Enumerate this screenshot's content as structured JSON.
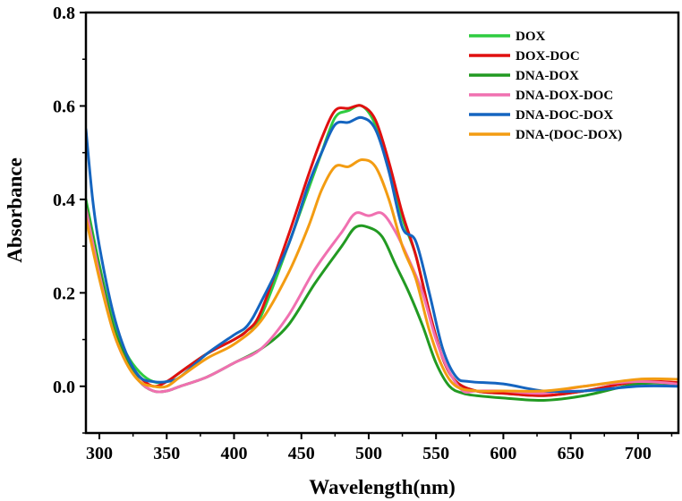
{
  "chart_data": {
    "type": "line",
    "title": "",
    "xlabel": "Wavelength(nm)",
    "ylabel": "Absorbance",
    "xlim": [
      290,
      730
    ],
    "ylim": [
      -0.1,
      0.8
    ],
    "xticks": [
      300,
      350,
      400,
      450,
      500,
      550,
      600,
      650,
      700
    ],
    "yticks": [
      0.0,
      0.2,
      0.4,
      0.6,
      0.8
    ],
    "xtick_labels": [
      "300",
      "350",
      "400",
      "450",
      "500",
      "550",
      "600",
      "650",
      "700"
    ],
    "ytick_labels": [
      "0.0",
      "0.2",
      "0.4",
      "0.6",
      "0.8"
    ],
    "grid": false,
    "legend_position": "top-right",
    "series": [
      {
        "name": "DOX",
        "color": "#2ecc40",
        "x": [
          290,
          300,
          310,
          320,
          330,
          340,
          350,
          360,
          380,
          400,
          410,
          420,
          440,
          455,
          465,
          475,
          485,
          495,
          505,
          515,
          525,
          535,
          545,
          555,
          565,
          580,
          600,
          630,
          660,
          700,
          730
        ],
        "y": [
          0.4,
          0.26,
          0.14,
          0.07,
          0.03,
          0.01,
          0.01,
          0.03,
          0.07,
          0.1,
          0.12,
          0.15,
          0.3,
          0.42,
          0.5,
          0.575,
          0.59,
          0.6,
          0.56,
          0.47,
          0.36,
          0.28,
          0.16,
          0.06,
          0.01,
          -0.01,
          -0.015,
          -0.02,
          -0.01,
          0.01,
          0.005
        ]
      },
      {
        "name": "DOX-DOC",
        "color": "#e01010",
        "x": [
          290,
          300,
          310,
          320,
          330,
          340,
          350,
          360,
          380,
          400,
          410,
          420,
          440,
          455,
          465,
          475,
          485,
          495,
          505,
          515,
          525,
          535,
          545,
          555,
          565,
          580,
          600,
          630,
          660,
          700,
          730
        ],
        "y": [
          0.38,
          0.25,
          0.13,
          0.06,
          0.02,
          0.0,
          0.01,
          0.03,
          0.07,
          0.1,
          0.12,
          0.16,
          0.32,
          0.45,
          0.53,
          0.59,
          0.595,
          0.6,
          0.57,
          0.48,
          0.37,
          0.28,
          0.16,
          0.06,
          0.01,
          -0.01,
          -0.015,
          -0.02,
          -0.01,
          0.01,
          0.008
        ]
      },
      {
        "name": "DNA-DOX",
        "color": "#229a22",
        "x": [
          290,
          300,
          310,
          320,
          330,
          340,
          350,
          360,
          380,
          400,
          420,
          440,
          460,
          480,
          490,
          500,
          510,
          520,
          530,
          540,
          550,
          560,
          570,
          580,
          600,
          630,
          660,
          700,
          730
        ],
        "y": [
          0.39,
          0.25,
          0.13,
          0.06,
          0.01,
          -0.01,
          -0.01,
          0.0,
          0.02,
          0.05,
          0.08,
          0.13,
          0.22,
          0.3,
          0.34,
          0.34,
          0.32,
          0.26,
          0.2,
          0.13,
          0.05,
          0.0,
          -0.015,
          -0.02,
          -0.025,
          -0.03,
          -0.02,
          0.005,
          0.005
        ]
      },
      {
        "name": "DNA-DOX-DOC",
        "color": "#f070b0",
        "x": [
          290,
          300,
          310,
          320,
          330,
          340,
          350,
          360,
          380,
          400,
          420,
          440,
          460,
          480,
          490,
          500,
          510,
          520,
          530,
          540,
          550,
          560,
          570,
          580,
          600,
          630,
          660,
          700,
          730
        ],
        "y": [
          0.38,
          0.24,
          0.12,
          0.05,
          0.01,
          -0.01,
          -0.01,
          0.0,
          0.02,
          0.05,
          0.08,
          0.15,
          0.25,
          0.33,
          0.37,
          0.365,
          0.37,
          0.33,
          0.27,
          0.2,
          0.1,
          0.03,
          -0.01,
          -0.01,
          -0.01,
          -0.015,
          0.0,
          0.01,
          0.005
        ]
      },
      {
        "name": "DNA-DOC-DOX",
        "color": "#1565c0",
        "x": [
          290,
          295,
          300,
          310,
          320,
          330,
          340,
          350,
          360,
          380,
          400,
          410,
          420,
          440,
          455,
          465,
          475,
          485,
          495,
          505,
          515,
          525,
          535,
          545,
          555,
          565,
          575,
          600,
          630,
          660,
          700,
          730
        ],
        "y": [
          0.55,
          0.4,
          0.3,
          0.16,
          0.07,
          0.02,
          0.01,
          0.01,
          0.02,
          0.07,
          0.11,
          0.13,
          0.18,
          0.3,
          0.43,
          0.5,
          0.56,
          0.565,
          0.575,
          0.55,
          0.46,
          0.34,
          0.31,
          0.2,
          0.08,
          0.02,
          0.01,
          0.005,
          -0.01,
          -0.01,
          0.0,
          0.0
        ]
      },
      {
        "name": "DNA-(DOC-DOX)",
        "color": "#f39c12",
        "x": [
          290,
          300,
          310,
          320,
          330,
          340,
          350,
          360,
          380,
          400,
          420,
          440,
          455,
          465,
          475,
          485,
          495,
          505,
          515,
          525,
          535,
          545,
          555,
          565,
          580,
          600,
          630,
          660,
          700,
          730
        ],
        "y": [
          0.36,
          0.23,
          0.12,
          0.05,
          0.01,
          0.0,
          0.0,
          0.02,
          0.06,
          0.09,
          0.14,
          0.24,
          0.34,
          0.42,
          0.47,
          0.47,
          0.485,
          0.47,
          0.4,
          0.3,
          0.23,
          0.12,
          0.04,
          0.0,
          -0.01,
          -0.01,
          -0.01,
          0.0,
          0.015,
          0.015
        ]
      }
    ]
  }
}
